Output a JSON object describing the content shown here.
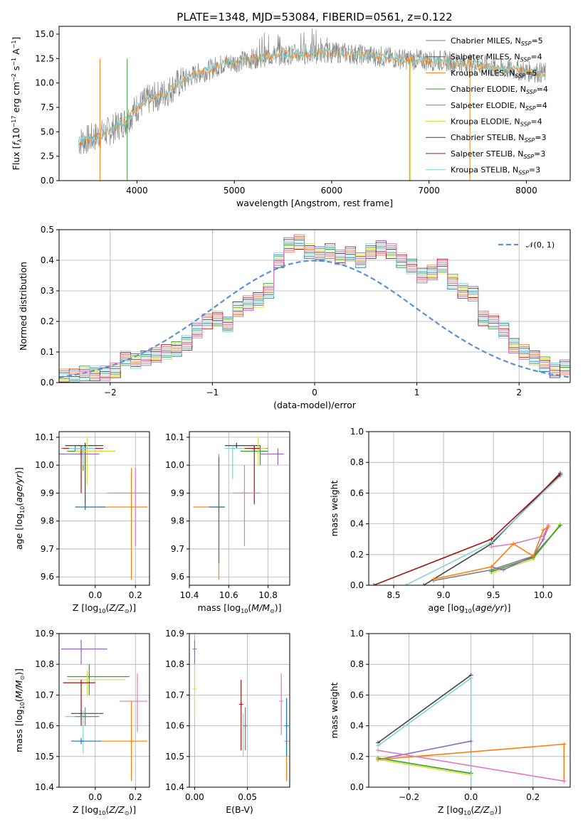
{
  "title": "PLATE=1348, MJD=53084, FIBERID=0561, z=0.122",
  "colors": {
    "Chabrier MILES": "#7f7f7f",
    "Salpeter MILES": "#1f77b4",
    "Kroupa MILES": "#ff7f0e",
    "Chabrier ELODIE": "#2ca02c",
    "Salpeter ELODIE": "#9467bd",
    "Kroupa ELODIE": "#dbdb3d",
    "Chabrier STELIB": "#444444",
    "Salpeter STELIB": "#aa1111",
    "Kroupa STELIB": "#80d4d8",
    "pink": "#e377c2"
  },
  "chart_data": [
    {
      "type": "line",
      "title": "PLATE=1348, MJD=53084, FIBERID=0561, z=0.122",
      "xlabel": "wavelength [Angstrom, rest frame]",
      "ylabel": "Flux [f_λ 10^-17 erg cm^-2 s^-1 A^-1]",
      "xlim": [
        3200,
        8450
      ],
      "ylim": [
        0,
        15.8
      ],
      "xticks": [
        4000,
        5000,
        6000,
        7000,
        8000
      ],
      "yticks": [
        0.0,
        2.5,
        5.0,
        7.5,
        10.0,
        12.5,
        15.0
      ],
      "xtick_labels": [
        "4000",
        "5000",
        "6000",
        "7000",
        "8000"
      ],
      "ytick_labels": [
        "0.0",
        "2.5",
        "5.0",
        "7.5",
        "10.0",
        "12.5",
        "15.0"
      ],
      "legend_position": "upper-right",
      "series": [
        {
          "name": "Chabrier MILES",
          "nssp": "5"
        },
        {
          "name": "Salpeter MILES",
          "nssp": "4"
        },
        {
          "name": "Kroupa MILES",
          "nssp": "5"
        },
        {
          "name": "Chabrier ELODIE",
          "nssp": "4"
        },
        {
          "name": "Salpeter ELODIE",
          "nssp": "4"
        },
        {
          "name": "Kroupa ELODIE",
          "nssp": "4"
        },
        {
          "name": "Chabrier STELIB",
          "nssp": "3"
        },
        {
          "name": "Salpeter STELIB",
          "nssp": "3"
        },
        {
          "name": "Kroupa STELIB",
          "nssp": "3"
        }
      ],
      "x": [
        3400,
        3500,
        3600,
        3700,
        3800,
        3900,
        4000,
        4100,
        4200,
        4300,
        4400,
        4500,
        4600,
        4700,
        4800,
        4900,
        5000,
        5100,
        5200,
        5300,
        5400,
        5500,
        5600,
        5700,
        5800,
        5900,
        6000,
        6100,
        6200,
        6300,
        6400,
        6500,
        6600,
        6700,
        6800,
        6900,
        7000,
        7100,
        7200,
        7300,
        7400,
        7500,
        7600,
        7700,
        7800,
        7900,
        8000,
        8100,
        8200
      ],
      "model_flux": [
        4.0,
        4.2,
        4.6,
        5.0,
        5.6,
        6.2,
        7.5,
        8.2,
        8.6,
        9.0,
        9.8,
        10.4,
        10.9,
        11.2,
        11.6,
        12.0,
        12.1,
        12.3,
        12.5,
        12.7,
        12.8,
        12.9,
        12.9,
        13.0,
        13.0,
        13.1,
        13.1,
        13.1,
        13.0,
        12.9,
        12.8,
        12.7,
        12.6,
        12.5,
        12.4,
        12.4,
        12.3,
        12.3,
        12.2,
        12.1,
        12.0,
        11.9,
        11.7,
        11.5,
        11.4,
        11.3,
        11.2,
        11.1,
        11.0
      ]
    },
    {
      "type": "line",
      "xlabel": "(data-model)/error",
      "ylabel": "Normed distribution",
      "xlim": [
        -2.5,
        2.5
      ],
      "ylim": [
        0,
        0.5
      ],
      "xticks": [
        -2,
        -1,
        0,
        1,
        2
      ],
      "yticks": [
        0.0,
        0.1,
        0.2,
        0.3,
        0.4,
        0.5
      ],
      "xtick_labels": [
        "−2",
        "−1",
        "0",
        "1",
        "2"
      ],
      "ytick_labels": [
        "0.0",
        "0.1",
        "0.2",
        "0.3",
        "0.4",
        "0.5"
      ],
      "legend": "𝒩(0, 1)",
      "legend_position": "upper-right",
      "bin_width": 0.1,
      "bin_start": -2.5,
      "histogram_base": [
        0.02,
        0.02,
        0.03,
        0.03,
        0.03,
        0.04,
        0.08,
        0.07,
        0.08,
        0.09,
        0.1,
        0.11,
        0.13,
        0.17,
        0.2,
        0.21,
        0.19,
        0.24,
        0.26,
        0.27,
        0.3,
        0.4,
        0.45,
        0.46,
        0.43,
        0.42,
        0.43,
        0.41,
        0.42,
        0.4,
        0.43,
        0.44,
        0.43,
        0.4,
        0.38,
        0.35,
        0.36,
        0.38,
        0.33,
        0.3,
        0.29,
        0.21,
        0.2,
        0.17,
        0.12,
        0.1,
        0.08,
        0.06,
        0.04,
        0.05
      ],
      "gaussian": {
        "mu": 0,
        "sigma": 1
      }
    },
    {
      "type": "scatter",
      "xlabel": "Z [log10(Z/Z⊙)]",
      "ylabel": "age  [log10(age/yr)]",
      "xlim": [
        -0.18,
        0.27
      ],
      "ylim": [
        9.57,
        10.12
      ],
      "xticks": [
        0.0,
        0.2
      ],
      "yticks": [
        9.6,
        9.7,
        9.8,
        9.9,
        10.0,
        10.1
      ],
      "xtick_labels": [
        "0.0",
        "0.2"
      ],
      "ytick_labels": [
        "9.6",
        "9.7",
        "9.8",
        "9.9",
        "10.0",
        "10.1"
      ],
      "points": [
        {
          "c": "#7f7f7f",
          "x": -0.1,
          "y": 10.06,
          "x0": -0.17,
          "x1": 0.02,
          "y0": 10.05,
          "y1": 10.07
        },
        {
          "c": "#444444",
          "x": -0.05,
          "y": 10.07,
          "x0": -0.15,
          "x1": 0.04,
          "y0": 9.86,
          "y1": 10.08
        },
        {
          "c": "#2ca02c",
          "x": -0.06,
          "y": 10.05,
          "x0": -0.14,
          "x1": 0.1,
          "y0": 9.98,
          "y1": 10.07
        },
        {
          "c": "#dbdb3d",
          "x": -0.04,
          "y": 10.05,
          "x0": -0.1,
          "x1": 0.1,
          "y0": 9.93,
          "y1": 10.1
        },
        {
          "c": "#9467bd",
          "x": -0.07,
          "y": 10.04,
          "x0": -0.18,
          "x1": 0.02,
          "y0": 10.03,
          "y1": 10.07
        },
        {
          "c": "#aa1111",
          "x": -0.07,
          "y": 10.06,
          "x0": -0.16,
          "x1": 0.04,
          "y0": 9.9,
          "y1": 10.07
        },
        {
          "c": "#80d4d8",
          "x": -0.06,
          "y": 10.06,
          "x0": -0.13,
          "x1": 0.0,
          "y0": 10.0,
          "y1": 10.07
        },
        {
          "c": "#e377c2",
          "x": 0.2,
          "y": 9.9,
          "x0": 0.06,
          "x1": 0.26,
          "y0": 9.71,
          "y1": 9.99
        },
        {
          "c": "#ff7f0e",
          "x": 0.18,
          "y": 9.85,
          "x0": 0.03,
          "x1": 0.26,
          "y0": 9.59,
          "y1": 9.99
        },
        {
          "c": "#1f77b4",
          "x": -0.05,
          "y": 9.85,
          "x0": -0.1,
          "x1": 0.05,
          "y0": 9.84,
          "y1": 9.86
        }
      ]
    },
    {
      "type": "scatter",
      "xlabel": "mass [log10(M/M⊙)]",
      "ylabel": "",
      "xlim": [
        10.4,
        10.91
      ],
      "ylim": [
        9.57,
        10.12
      ],
      "xticks": [
        10.4,
        10.6,
        10.8
      ],
      "yticks": [
        9.6,
        9.7,
        9.8,
        9.9,
        10.0,
        10.1
      ],
      "xtick_labels": [
        "10.4",
        "10.6",
        "10.8"
      ],
      "ytick_labels": [
        "9.6",
        "9.7",
        "9.8",
        "9.9",
        "10.0",
        "10.1"
      ],
      "points": [
        {
          "c": "#7f7f7f",
          "x": 10.76,
          "y": 10.06,
          "x0": 10.68,
          "x1": 10.8,
          "y0": 10.05,
          "y1": 10.07
        },
        {
          "c": "#444444",
          "x": 10.64,
          "y": 10.07,
          "x0": 10.58,
          "x1": 10.76,
          "y0": 10.06,
          "y1": 10.08
        },
        {
          "c": "#2ca02c",
          "x": 10.76,
          "y": 10.05,
          "x0": 10.66,
          "x1": 10.8,
          "y0": 10.0,
          "y1": 10.07
        },
        {
          "c": "#dbdb3d",
          "x": 10.75,
          "y": 10.06,
          "x0": 10.67,
          "x1": 10.79,
          "y0": 10.0,
          "y1": 10.1
        },
        {
          "c": "#9467bd",
          "x": 10.85,
          "y": 10.04,
          "x0": 10.76,
          "x1": 10.88,
          "y0": 10.0,
          "y1": 10.06
        },
        {
          "c": "#aa1111",
          "x": 10.73,
          "y": 10.06,
          "x0": 10.68,
          "x1": 10.76,
          "y0": 9.86,
          "y1": 10.07
        },
        {
          "c": "#80d4d8",
          "x": 10.62,
          "y": 10.06,
          "x0": 10.58,
          "x1": 10.67,
          "y0": 9.95,
          "y1": 10.07
        },
        {
          "c": "#e377c2",
          "x": 10.68,
          "y": 9.9,
          "x0": 10.62,
          "x1": 10.76,
          "y0": 9.71,
          "y1": 10.0
        },
        {
          "c": "#ff7f0e",
          "x": 10.55,
          "y": 9.85,
          "x0": 10.42,
          "x1": 10.58,
          "y0": 9.59,
          "y1": 10.04
        },
        {
          "c": "#1f77b4",
          "x": 10.55,
          "y": 9.85,
          "x0": 10.5,
          "x1": 10.58,
          "y0": 9.65,
          "y1": 10.03
        }
      ]
    },
    {
      "type": "line",
      "xlabel": "age  [log10(age/yr)]",
      "ylabel": "mass weight",
      "xlim": [
        8.25,
        10.27
      ],
      "ylim": [
        0,
        1.0
      ],
      "xticks": [
        8.5,
        9.0,
        9.5,
        10.0
      ],
      "yticks": [
        0.0,
        0.2,
        0.4,
        0.6,
        0.8,
        1.0
      ],
      "xtick_labels": [
        "8.5",
        "9.0",
        "9.5",
        "10.0"
      ],
      "ytick_labels": [
        "0.0",
        "0.2",
        "0.4",
        "0.6",
        "0.8",
        "1.0"
      ],
      "series": [
        {
          "c": "#444444",
          "x": [
            8.8,
            9.48,
            10.17
          ],
          "y": [
            0.0,
            0.27,
            0.73
          ]
        },
        {
          "c": "#80d4d8",
          "x": [
            8.62,
            9.48,
            10.17
          ],
          "y": [
            0.0,
            0.28,
            0.71
          ]
        },
        {
          "c": "#aa1111",
          "x": [
            8.3,
            9.48,
            10.17
          ],
          "y": [
            0.0,
            0.3,
            0.72
          ]
        },
        {
          "c": "#7f7f7f",
          "x": [
            8.9,
            9.48,
            9.9,
            10.17
          ],
          "y": [
            0.03,
            0.1,
            0.19,
            0.39
          ]
        },
        {
          "c": "#dbdb3d",
          "x": [
            9.48,
            9.9,
            10.17
          ],
          "y": [
            0.08,
            0.17,
            0.4
          ]
        },
        {
          "c": "#2ca02c",
          "x": [
            9.48,
            9.9,
            10.17
          ],
          "y": [
            0.09,
            0.18,
            0.39
          ]
        },
        {
          "c": "#9467bd",
          "x": [
            9.48,
            9.6,
            9.9,
            10.0,
            10.05
          ],
          "y": [
            0.12,
            0.1,
            0.19,
            0.3,
            0.38
          ]
        },
        {
          "c": "#e377c2",
          "x": [
            9.48,
            9.7,
            10.0,
            10.05
          ],
          "y": [
            0.25,
            0.27,
            0.32,
            0.39
          ]
        },
        {
          "c": "#ff7f0e",
          "x": [
            8.9,
            9.48,
            9.7,
            9.9,
            10.0,
            10.05
          ],
          "y": [
            0.04,
            0.12,
            0.27,
            0.19,
            0.36,
            0.38
          ]
        }
      ]
    },
    {
      "type": "scatter",
      "xlabel": "Z [log10(Z/Z⊙)]",
      "ylabel": "mass [log10(M/M⊙)]",
      "xlim": [
        -0.18,
        0.27
      ],
      "ylim": [
        10.4,
        10.9
      ],
      "xticks": [
        0.0,
        0.2
      ],
      "yticks": [
        10.4,
        10.5,
        10.6,
        10.7,
        10.8,
        10.9
      ],
      "xtick_labels": [
        "0.0",
        "0.2"
      ],
      "ytick_labels": [
        "10.4",
        "10.5",
        "10.6",
        "10.7",
        "10.8",
        "10.9"
      ],
      "points": [
        {
          "c": "#9467bd",
          "x": -0.07,
          "y": 10.85,
          "x0": -0.17,
          "x1": 0.06,
          "y0": 10.8,
          "y1": 10.88
        },
        {
          "c": "#2ca02c",
          "x": -0.03,
          "y": 10.76,
          "x0": -0.14,
          "x1": 0.17,
          "y0": 10.7,
          "y1": 10.8
        },
        {
          "c": "#dbdb3d",
          "x": -0.04,
          "y": 10.75,
          "x0": -0.14,
          "x1": 0.15,
          "y0": 10.7,
          "y1": 10.78
        },
        {
          "c": "#aa1111",
          "x": -0.07,
          "y": 10.74,
          "x0": -0.16,
          "x1": 0.0,
          "y0": 10.6,
          "y1": 10.75
        },
        {
          "c": "#e377c2",
          "x": 0.21,
          "y": 10.68,
          "x0": 0.12,
          "x1": 0.26,
          "y0": 10.58,
          "y1": 10.77
        },
        {
          "c": "#444444",
          "x": -0.07,
          "y": 10.64,
          "x0": -0.12,
          "x1": 0.04,
          "y0": 10.62,
          "y1": 10.65
        },
        {
          "c": "#80d4d8",
          "x": -0.06,
          "y": 10.63,
          "x0": -0.15,
          "x1": 0.0,
          "y0": 10.51,
          "y1": 10.65
        },
        {
          "c": "#7f7f7f",
          "x": -0.05,
          "y": 10.63,
          "x0": -0.1,
          "x1": 0.02,
          "y0": 10.6,
          "y1": 10.66
        },
        {
          "c": "#1f77b4",
          "x": -0.07,
          "y": 10.55,
          "x0": -0.12,
          "x1": 0.03,
          "y0": 10.54,
          "y1": 10.56
        },
        {
          "c": "#ff7f0e",
          "x": 0.18,
          "y": 10.55,
          "x0": 0.03,
          "x1": 0.26,
          "y0": 10.42,
          "y1": 10.68
        }
      ]
    },
    {
      "type": "scatter",
      "xlabel": "E(B-V)",
      "ylabel": "",
      "xlim": [
        -0.005,
        0.09
      ],
      "ylim": [
        10.4,
        10.9
      ],
      "xticks": [
        0.0,
        0.05
      ],
      "yticks": [
        10.4,
        10.5,
        10.6,
        10.7,
        10.8,
        10.9
      ],
      "xtick_labels": [
        "0.00",
        "0.05"
      ],
      "ytick_labels": [
        "10.4",
        "10.5",
        "10.6",
        "10.7",
        "10.8",
        "10.9"
      ],
      "points": [
        {
          "c": "#9467bd",
          "x": 0.0,
          "y": 10.85,
          "y0": 10.8,
          "y1": 10.88
        },
        {
          "c": "#dbdb3d",
          "x": 0.0,
          "y": 10.72,
          "y0": 10.62,
          "y1": 10.8
        },
        {
          "c": "#aa1111",
          "x": 0.044,
          "y": 10.67,
          "y0": 10.52,
          "y1": 10.75
        },
        {
          "c": "#80d4d8",
          "x": 0.046,
          "y": 10.6,
          "y0": 10.5,
          "y1": 10.64
        },
        {
          "c": "#7f7f7f",
          "x": 0.048,
          "y": 10.6,
          "y0": 10.52,
          "y1": 10.66
        },
        {
          "c": "#e377c2",
          "x": 0.082,
          "y": 10.68,
          "y0": 10.57,
          "y1": 10.77
        },
        {
          "c": "#ff7f0e",
          "x": 0.087,
          "y": 10.55,
          "y0": 10.42,
          "y1": 10.69
        },
        {
          "c": "#1f77b4",
          "x": 0.087,
          "y": 10.6,
          "y0": 10.5,
          "y1": 10.69
        }
      ]
    },
    {
      "type": "line",
      "xlabel": "Z [log10(Z/Z⊙)]",
      "ylabel": "mass weight",
      "xlim": [
        -0.33,
        0.32
      ],
      "ylim": [
        0,
        1.0
      ],
      "xticks": [
        -0.2,
        0.0,
        0.2
      ],
      "yticks": [
        0.0,
        0.2,
        0.4,
        0.6,
        0.8,
        1.0
      ],
      "xtick_labels": [
        "−0.2",
        "0.0",
        "0.2"
      ],
      "ytick_labels": [
        "0.0",
        "0.2",
        "0.4",
        "0.6",
        "0.8",
        "1.0"
      ],
      "series": [
        {
          "c": "#444444",
          "x": [
            -0.3,
            0.0
          ],
          "y": [
            0.29,
            0.73
          ]
        },
        {
          "c": "#80d4d8",
          "x": [
            -0.3,
            0.0,
            0.0
          ],
          "y": [
            0.27,
            0.71,
            0.0
          ]
        },
        {
          "c": "#9467bd",
          "x": [
            -0.3,
            0.0
          ],
          "y": [
            0.18,
            0.3
          ]
        },
        {
          "c": "#2ca02c",
          "x": [
            -0.3,
            0.0
          ],
          "y": [
            0.19,
            0.09
          ]
        },
        {
          "c": "#dbdb3d",
          "x": [
            -0.3,
            0.0
          ],
          "y": [
            0.18,
            0.08
          ]
        },
        {
          "c": "#ff7f0e",
          "x": [
            -0.3,
            0.0,
            0.3,
            0.3
          ],
          "y": [
            0.18,
            0.23,
            0.28,
            0.04
          ]
        },
        {
          "c": "#e377c2",
          "x": [
            -0.3,
            0.3
          ],
          "y": [
            0.24,
            0.04
          ]
        }
      ]
    }
  ]
}
